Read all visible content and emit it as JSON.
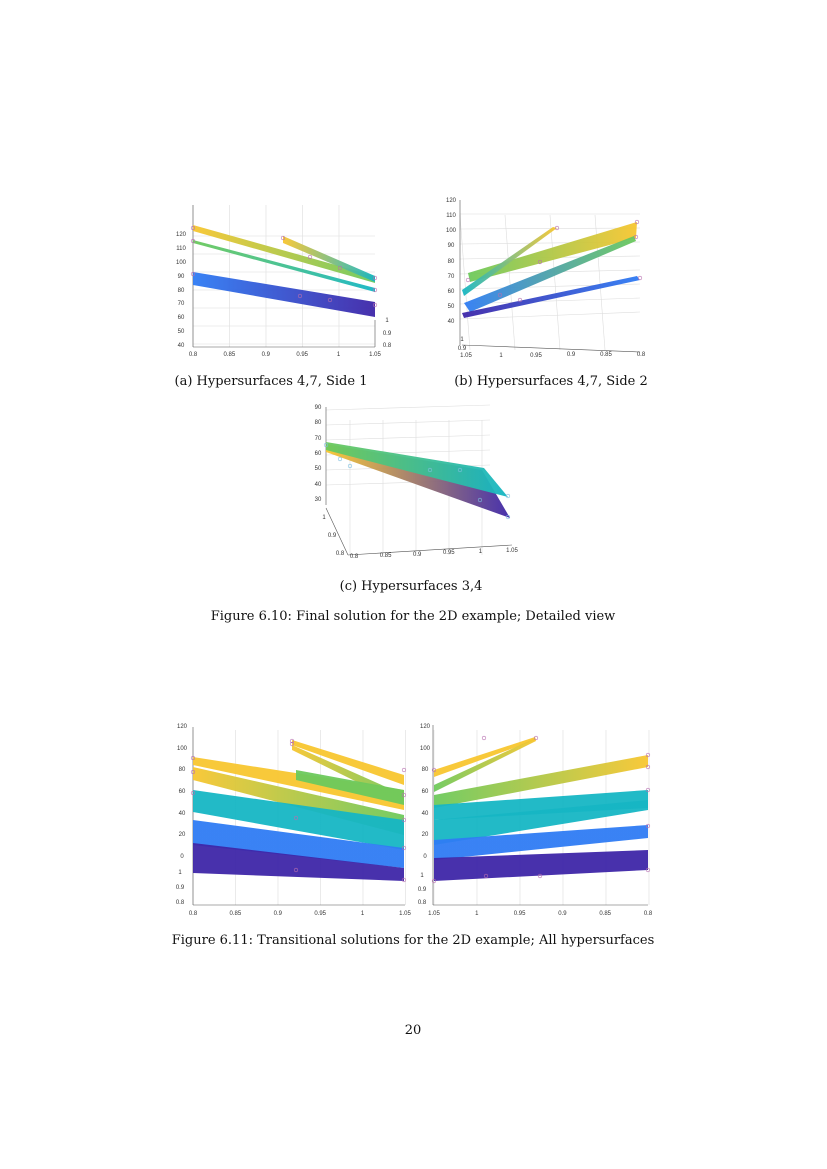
{
  "figures": [
    {
      "id": "6.10",
      "caption": "Figure 6.10: Final solution for the 2D example; Detailed view",
      "subfigures": [
        {
          "caption": "(a) Hypersurfaces 4,7, Side 1",
          "chart_data": {
            "type": "surface3d",
            "z_ticks": [
              "120",
              "110",
              "100",
              "90",
              "80",
              "70",
              "60",
              "50",
              "40"
            ],
            "x_ticks": [
              "0.8",
              "0.85",
              "0.9",
              "0.95",
              "1",
              "1.05"
            ],
            "y_ticks": [
              "1",
              "0.9",
              "0.8"
            ],
            "colormap": "parula"
          }
        },
        {
          "caption": "(b) Hypersurfaces 4,7, Side 2",
          "chart_data": {
            "type": "surface3d",
            "z_ticks": [
              "120",
              "110",
              "100",
              "90",
              "80",
              "70",
              "60",
              "50",
              "40"
            ],
            "x_ticks": [
              "1.05",
              "1",
              "0.95",
              "0.9",
              "0.85",
              "0.8"
            ],
            "y_ticks": [
              "1",
              "0.9"
            ],
            "colormap": "parula"
          }
        },
        {
          "caption": "(c) Hypersurfaces 3,4",
          "chart_data": {
            "type": "surface3d",
            "z_ticks": [
              "90",
              "80",
              "70",
              "60",
              "50",
              "40",
              "30"
            ],
            "x_ticks": [
              "0.8",
              "0.85",
              "0.9",
              "0.95",
              "1",
              "1.05"
            ],
            "y_ticks": [
              "1",
              "0.9",
              "0.8"
            ],
            "colormap": "parula"
          }
        }
      ]
    },
    {
      "id": "6.11",
      "caption": "Figure 6.11: Transitional solutions for the 2D example; All hypersurfaces",
      "subfigures": [
        {
          "chart_data": {
            "type": "surface3d",
            "z_ticks": [
              "120",
              "100",
              "80",
              "60",
              "40",
              "20",
              "0"
            ],
            "x_ticks": [
              "0.8",
              "0.85",
              "0.9",
              "0.95",
              "1",
              "1.05"
            ],
            "y_ticks": [
              "1",
              "0.9",
              "0.8"
            ],
            "colormap": "parula"
          }
        },
        {
          "chart_data": {
            "type": "surface3d",
            "z_ticks": [
              "120",
              "100",
              "80",
              "60",
              "40",
              "20",
              "0"
            ],
            "x_ticks": [
              "1.05",
              "1",
              "0.95",
              "0.9",
              "0.85",
              "0.8"
            ],
            "y_ticks": [
              "1",
              "0.9",
              "0.8"
            ],
            "colormap": "parula"
          }
        }
      ]
    }
  ],
  "page_number": "20",
  "colors": {
    "dark_blue": "#3e26a8",
    "blue": "#2f7cf4",
    "cyan": "#16b6c4",
    "green": "#6cc95c",
    "yellow": "#f8c630"
  }
}
